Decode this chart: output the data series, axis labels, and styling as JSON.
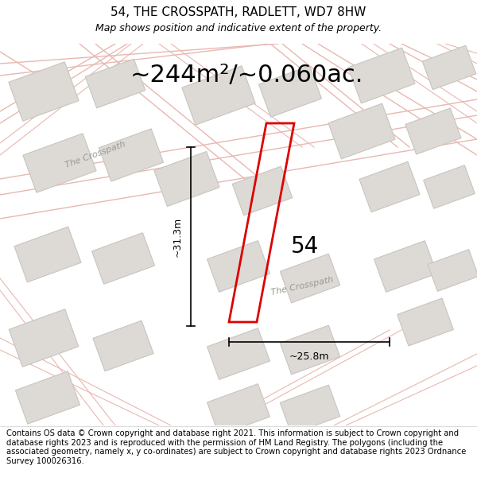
{
  "title": "54, THE CROSSPATH, RADLETT, WD7 8HW",
  "subtitle": "Map shows position and indicative extent of the property.",
  "area_text": "~244m²/~0.060ac.",
  "number_label": "54",
  "dim_width": "~25.8m",
  "dim_height": "~31.3m",
  "footer_text": "Contains OS data © Crown copyright and database right 2021. This information is subject to Crown copyright and database rights 2023 and is reproduced with the permission of HM Land Registry. The polygons (including the associated geometry, namely x, y co-ordinates) are subject to Crown copyright and database rights 2023 Ordnance Survey 100026316.",
  "bg_color": "#f2f0ed",
  "map_bg": "#eeece9",
  "property_color": "#dd0000",
  "road_color": "#e8b8b0",
  "road_outline_color": "#d4a098",
  "building_color": "#dddad6",
  "building_stroke": "#c8c5c0",
  "white_bg": "#ffffff",
  "title_fontsize": 11,
  "subtitle_fontsize": 9,
  "area_fontsize": 22,
  "label_fontsize": 20,
  "dim_fontsize": 9,
  "footer_fontsize": 7.2
}
